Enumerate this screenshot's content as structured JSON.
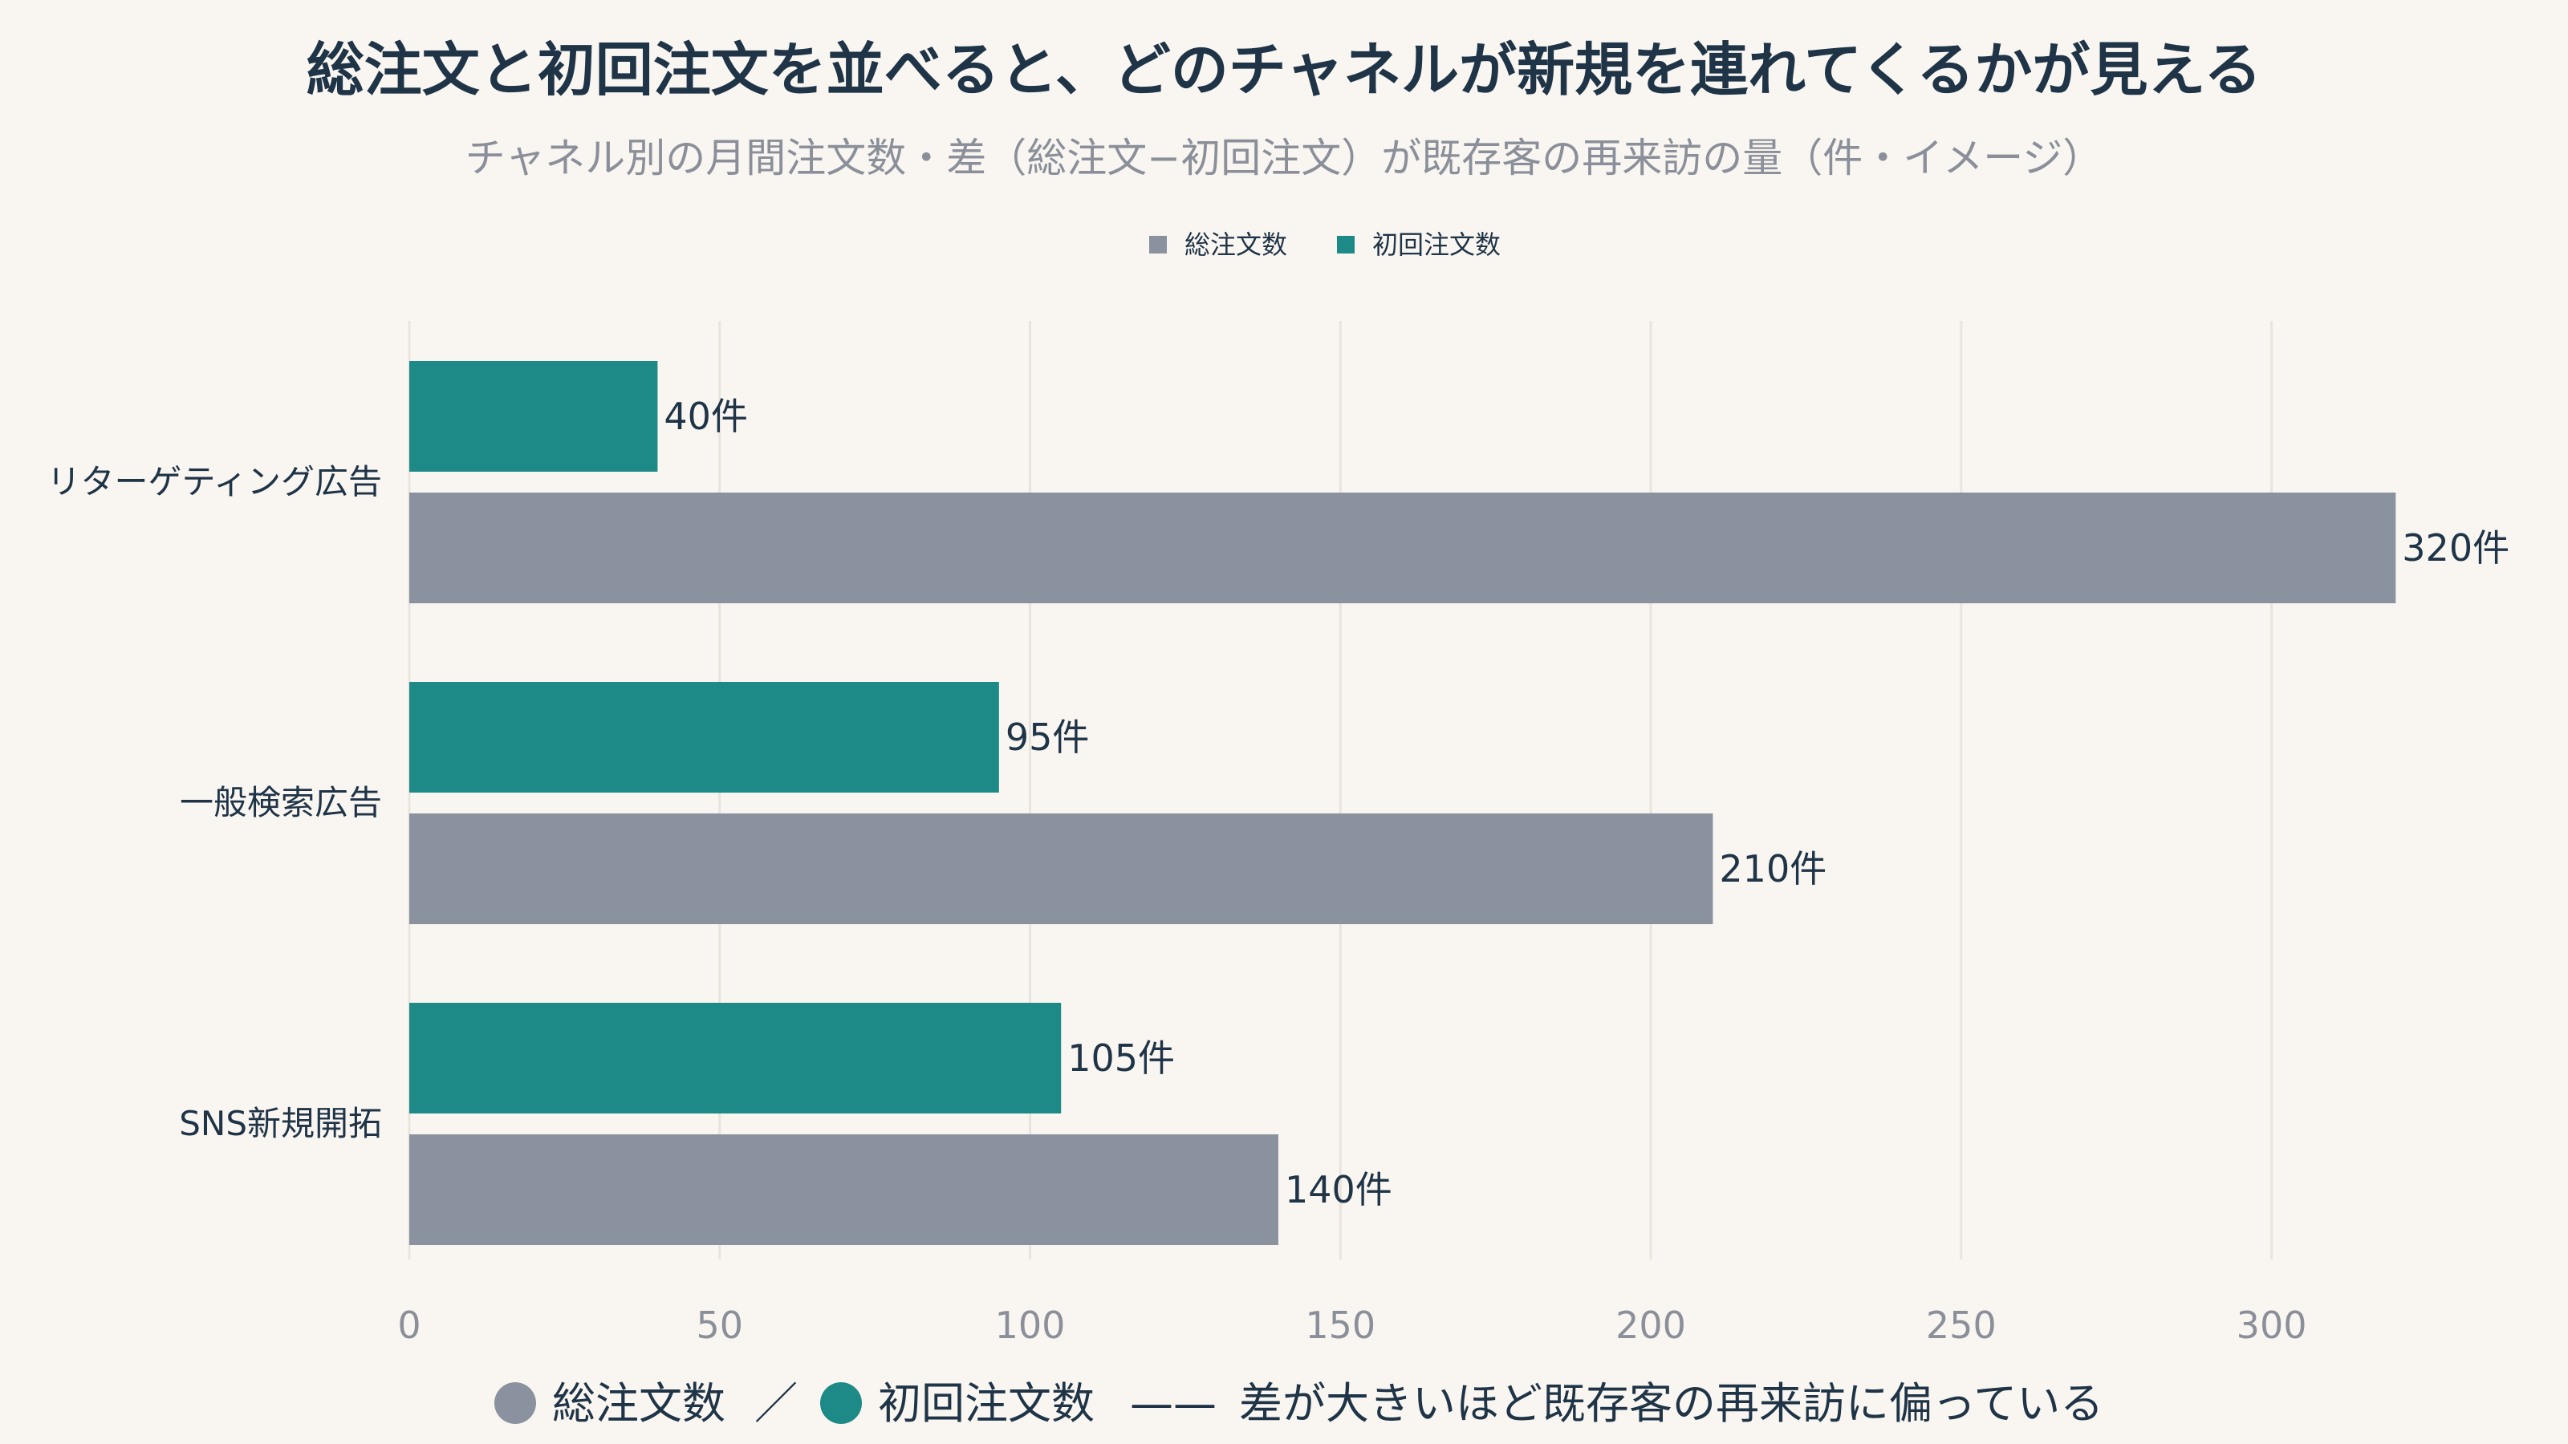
{
  "chart_data": {
    "type": "bar",
    "orientation": "horizontal",
    "title": "総注文と初回注文を並べると、どのチャネルが新規を連れてくるかが見える",
    "subtitle": "チャネル別の月間注文数・差（総注文−初回注文）が既存客の再来訪の量（件・イメージ）",
    "categories": [
      "リターゲティング広告",
      "一般検索広告",
      "SNS新規開拓"
    ],
    "series": [
      {
        "name": "初回注文数",
        "values": [
          40,
          95,
          105
        ],
        "color": "#1e8a87"
      },
      {
        "name": "総注文数",
        "values": [
          320,
          210,
          140
        ],
        "color": "#8a92a0"
      }
    ],
    "legend": {
      "placement": "top-center",
      "items": [
        "総注文数",
        "初回注文数"
      ]
    },
    "value_suffix": "件",
    "xlim": [
      0,
      340
    ],
    "xticks": [
      0,
      50,
      100,
      150,
      200,
      250,
      300
    ],
    "grid": true,
    "xlabel": "",
    "ylabel": ""
  },
  "note": {
    "total_label": "総注文数",
    "separator": "／",
    "first_label": "初回注文数",
    "dash": "——",
    "text": "差が大きいほど既存客の再来訪に偏っている"
  },
  "colors": {
    "background": "#f9f6f1",
    "total": "#8a92a0",
    "first": "#1e8a87",
    "text": "#1f3447",
    "muted": "#8a8f99"
  }
}
